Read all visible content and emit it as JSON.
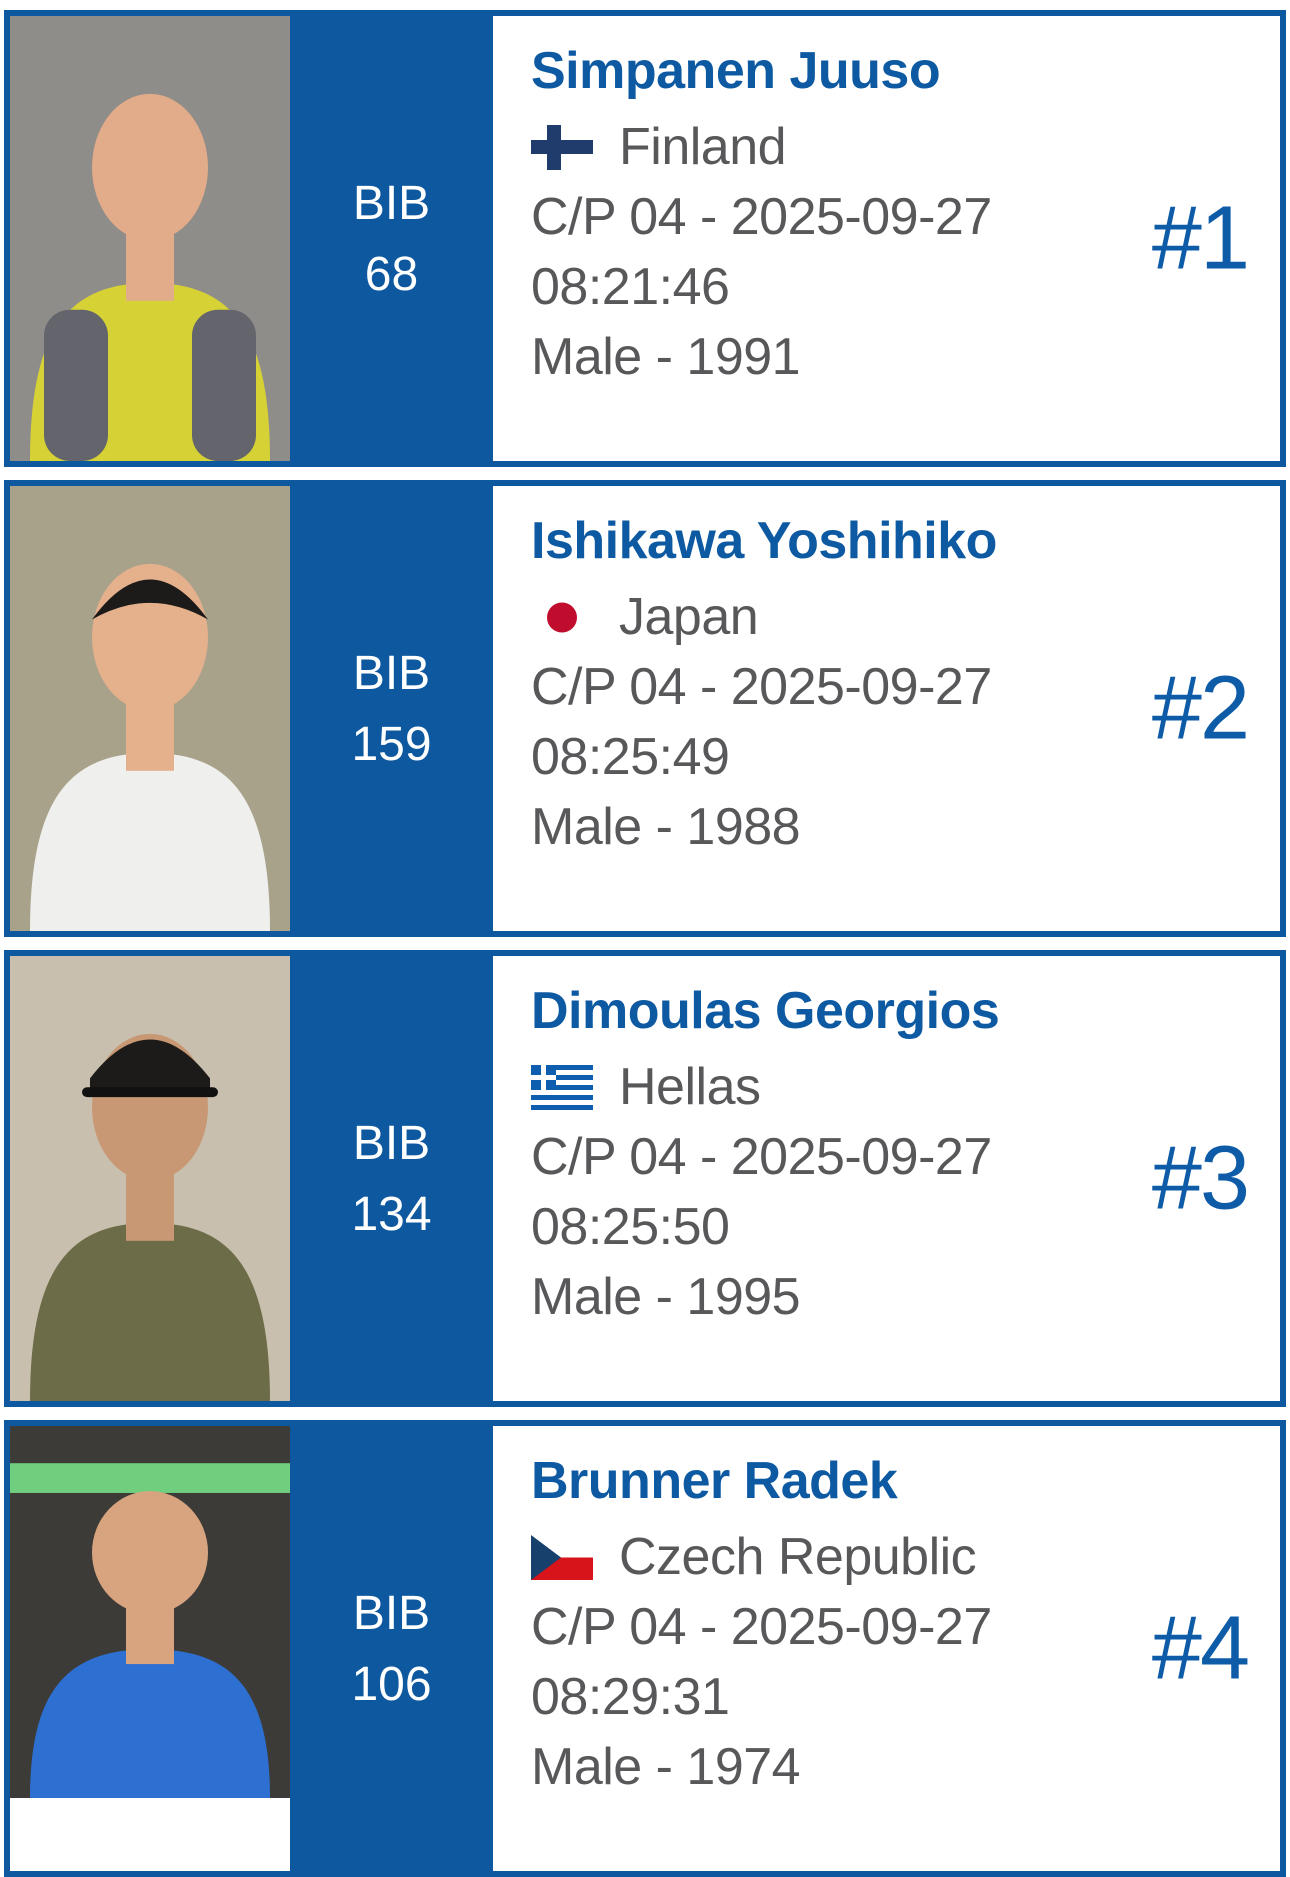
{
  "colors": {
    "card_blue": "#0d589f",
    "name_blue": "#0d5aa2",
    "rank_blue": "#0e5ca8",
    "body_gray": "#58585b"
  },
  "bib_label": "BIB",
  "flag_colors": {
    "finland_cross": "#203c6d",
    "japan_disc": "#c00d2d",
    "greece_blue": "#0d5eaf",
    "czech_blue": "#17406d",
    "czech_red": "#d7141a",
    "white": "#ffffff"
  },
  "cards": [
    {
      "rank": "#1",
      "bib": "68",
      "name": "Simpanen Juuso",
      "country": "Finland",
      "flag": "finland",
      "checkpoint": "C/P 04 - 2025-09-27",
      "time": "08:21:46",
      "gender_year": "Male - 1991",
      "photo": {
        "bg": "#8e8d89",
        "shirt": "#d6d135",
        "vest": "#64646c",
        "skin": "#e2ab89",
        "hair": "bald"
      }
    },
    {
      "rank": "#2",
      "bib": "159",
      "name": "Ishikawa Yoshihiko",
      "country": "Japan",
      "flag": "japan",
      "checkpoint": "C/P 04 - 2025-09-27",
      "time": "08:25:49",
      "gender_year": "Male - 1988",
      "photo": {
        "bg": "#a9a28b",
        "shirt": "#efefed",
        "skin": "#e5b08c",
        "hair": "black"
      }
    },
    {
      "rank": "#3",
      "bib": "134",
      "name": "Dimoulas Georgios",
      "country": "Hellas",
      "flag": "greece",
      "checkpoint": "C/P 04 - 2025-09-27",
      "time": "08:25:50",
      "gender_year": "Male - 1995",
      "photo": {
        "bg": "#c9bfae",
        "shirt": "#6d6c48",
        "skin": "#c89874",
        "hair": "cap"
      }
    },
    {
      "rank": "#4",
      "bib": "106",
      "name": "Brunner Radek",
      "country": "Czech Republic",
      "flag": "czech",
      "checkpoint": "C/P 04 - 2025-09-27",
      "time": "08:29:31",
      "gender_year": "Male - 1974",
      "photo": {
        "bg": "#3c3b37",
        "accent": "#6fcf7e",
        "shirt": "#2e6fd2",
        "skin": "#d8a480",
        "hair": "bald"
      }
    }
  ]
}
